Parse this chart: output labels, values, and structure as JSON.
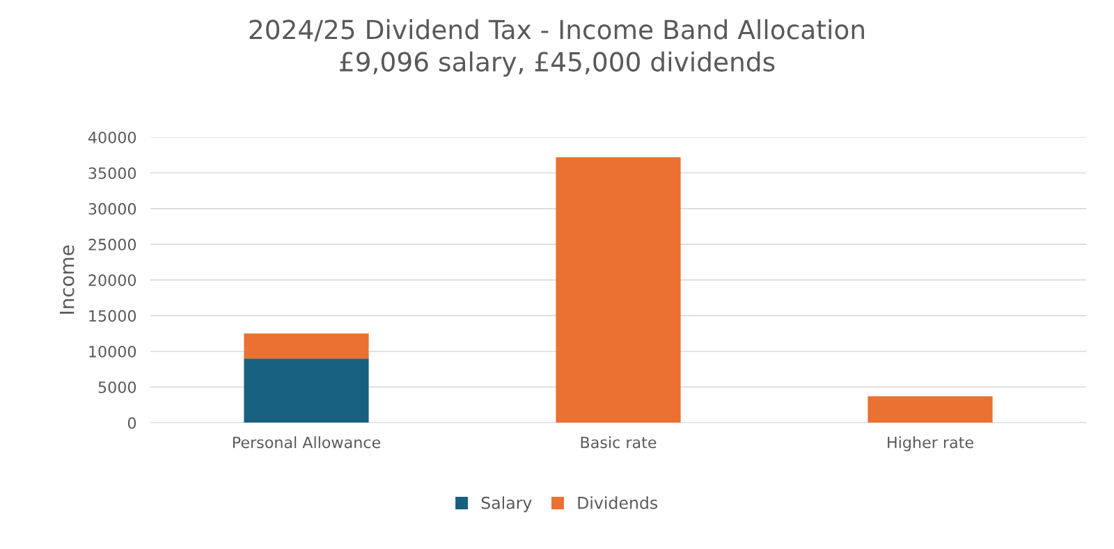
{
  "chart_data": {
    "type": "bar",
    "title": "2024/25 Dividend Tax - Income Band Allocation\n£9,096 salary, £45,000 dividends",
    "ylabel": "Income",
    "categories": [
      "Personal Allowance",
      "Basic rate",
      "Higher rate"
    ],
    "series": [
      {
        "name": "Salary",
        "color": "#17607f",
        "values": [
          9000,
          null,
          null
        ]
      },
      {
        "name": "Dividends",
        "color": "#ea7131",
        "values": [
          3500,
          37200,
          3700
        ]
      }
    ],
    "stacked": true,
    "ylim": [
      0,
      40000
    ],
    "yticks": [
      0,
      5000,
      10000,
      15000,
      20000,
      25000,
      30000,
      35000,
      40000
    ],
    "grid": "y",
    "legend": "bottom"
  }
}
